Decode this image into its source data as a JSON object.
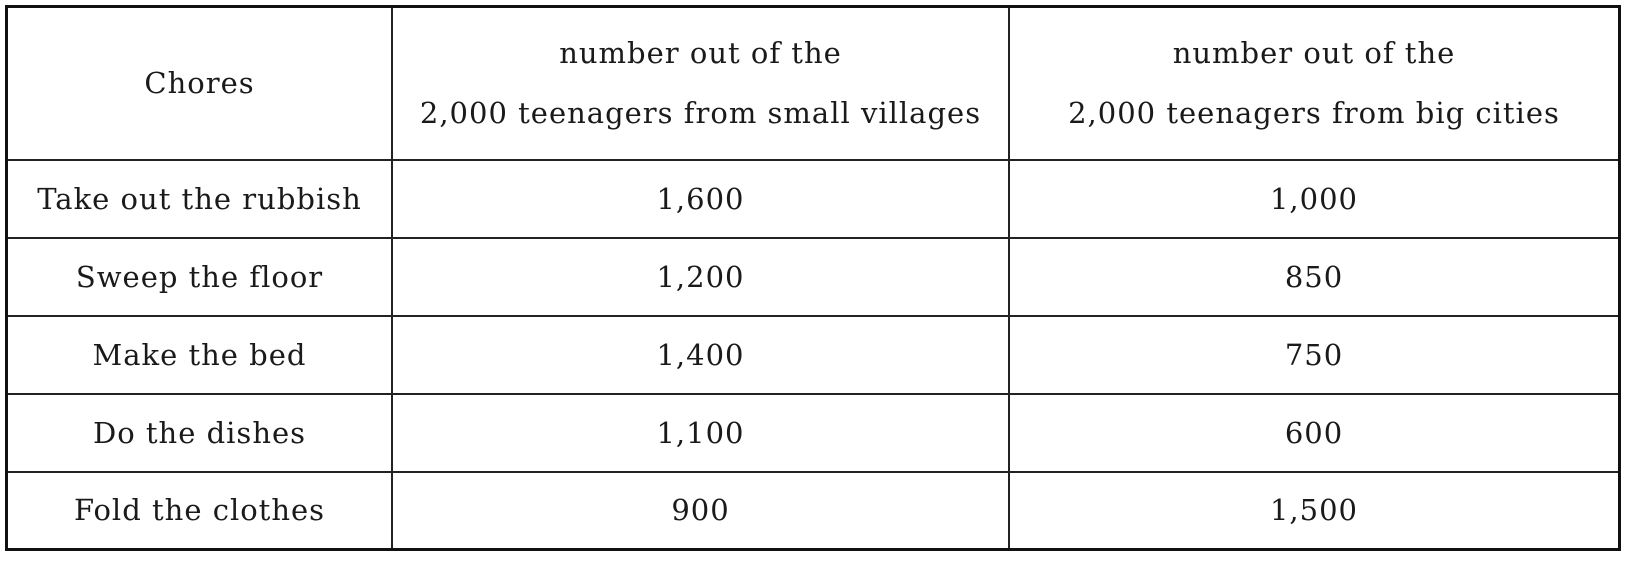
{
  "table": {
    "headers": [
      {
        "lines": [
          "Chores"
        ]
      },
      {
        "lines": [
          "number out of the",
          "2,000 teenagers from small villages"
        ]
      },
      {
        "lines": [
          "number out of the",
          "2,000 teenagers from big cities"
        ]
      }
    ],
    "rows": [
      [
        "Take out the rubbish",
        "1,600",
        "1,000"
      ],
      [
        "Sweep the floor",
        "1,200",
        "850"
      ],
      [
        "Make the bed",
        "1,400",
        "750"
      ],
      [
        "Do the dishes",
        "1,100",
        "600"
      ],
      [
        "Fold the clothes",
        "900",
        "1,500"
      ]
    ]
  }
}
